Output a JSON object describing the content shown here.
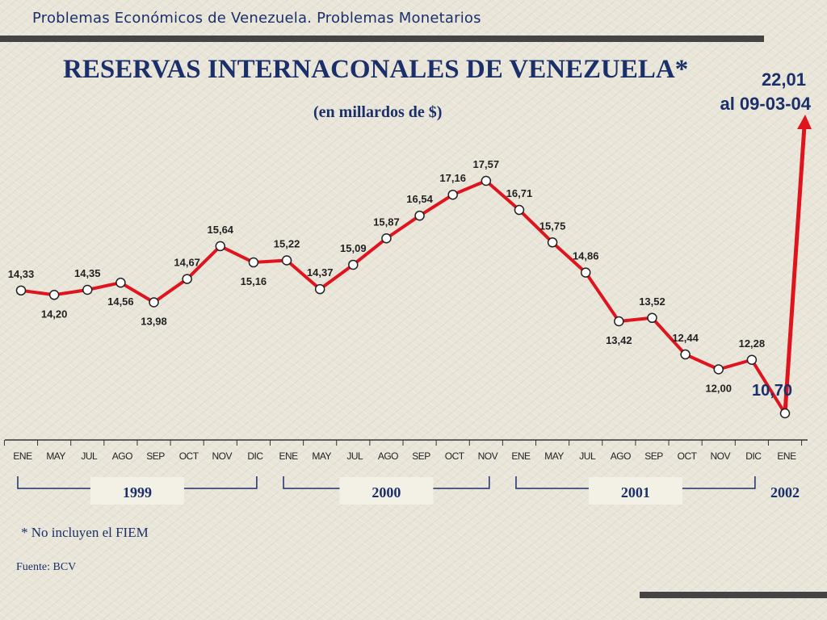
{
  "header": {
    "text": "Problemas Económicos de Venezuela.  Problemas Monetarios"
  },
  "title": "RESERVAS INTERNACONALES DE VENEZUELA*",
  "subtitle": "(en millardos de $)",
  "callout": {
    "value": "22,01",
    "date": "al 09-03-04"
  },
  "note": "* No incluyen el FIEM",
  "source": "Fuente: BCV",
  "colors": {
    "line": "#e0141e",
    "text": "#1b2f6b",
    "label": "#222222"
  },
  "chart_data": {
    "type": "line",
    "categories": [
      "ENE",
      "MAY",
      "JUL",
      "AGO",
      "SEP",
      "OCT",
      "NOV",
      "DIC",
      "ENE",
      "MAY",
      "JUL",
      "AGO",
      "SEP",
      "OCT",
      "NOV",
      "ENE",
      "MAY",
      "JUL",
      "AGO",
      "SEP",
      "OCT",
      "NOV",
      "DIC",
      "ENE"
    ],
    "values": [
      14.33,
      14.2,
      14.35,
      14.56,
      13.98,
      14.67,
      15.64,
      15.16,
      15.22,
      14.37,
      15.09,
      15.87,
      16.54,
      17.16,
      17.57,
      16.71,
      15.75,
      14.86,
      13.42,
      13.52,
      12.44,
      12.0,
      12.28,
      10.7
    ],
    "value_labels": [
      "14,33",
      "14,20",
      "14,35",
      "14,56",
      "13,98",
      "14,67",
      "15,64",
      "15,16",
      "15,22",
      "14,37",
      "15,09",
      "15,87",
      "16,54",
      "17,16",
      "17,57",
      "16,71",
      "15,75",
      "14,86",
      "13,42",
      "13,52",
      "12,44",
      "12,00",
      "12,28",
      "10,70"
    ],
    "label_position": [
      "above",
      "below",
      "above",
      "below",
      "below",
      "above",
      "above",
      "below",
      "above",
      "above",
      "above",
      "above",
      "above",
      "above",
      "above",
      "above",
      "above",
      "above",
      "below",
      "above",
      "above",
      "below",
      "above",
      "above"
    ],
    "year_groups": [
      {
        "label": "1999",
        "start": 0,
        "end": 7
      },
      {
        "label": "2000",
        "start": 8,
        "end": 14
      },
      {
        "label": "2001",
        "start": 15,
        "end": 22
      },
      {
        "label": "2002",
        "start": 23,
        "end": 23
      }
    ],
    "final_value": 22.01,
    "ylim": [
      10,
      23
    ]
  }
}
